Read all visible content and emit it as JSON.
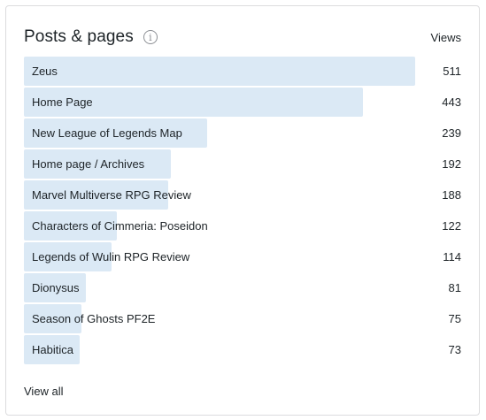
{
  "panel": {
    "title": "Posts & pages",
    "info_icon": "info-icon",
    "column_header": "Views",
    "bar_color": "#dbe9f5",
    "view_all": "View all"
  },
  "rows": [
    {
      "label": "Zeus",
      "views": 511
    },
    {
      "label": "Home Page",
      "views": 443
    },
    {
      "label": "New League of Legends Map",
      "views": 239
    },
    {
      "label": "Home page / Archives",
      "views": 192
    },
    {
      "label": "Marvel Multiverse RPG Review",
      "views": 188
    },
    {
      "label": "Characters of Cimmeria: Poseidon",
      "views": 122
    },
    {
      "label": "Legends of Wulin RPG Review",
      "views": 114
    },
    {
      "label": "Dionysus",
      "views": 81
    },
    {
      "label": "Season of Ghosts PF2E",
      "views": 75
    },
    {
      "label": "Habitica",
      "views": 73
    }
  ]
}
